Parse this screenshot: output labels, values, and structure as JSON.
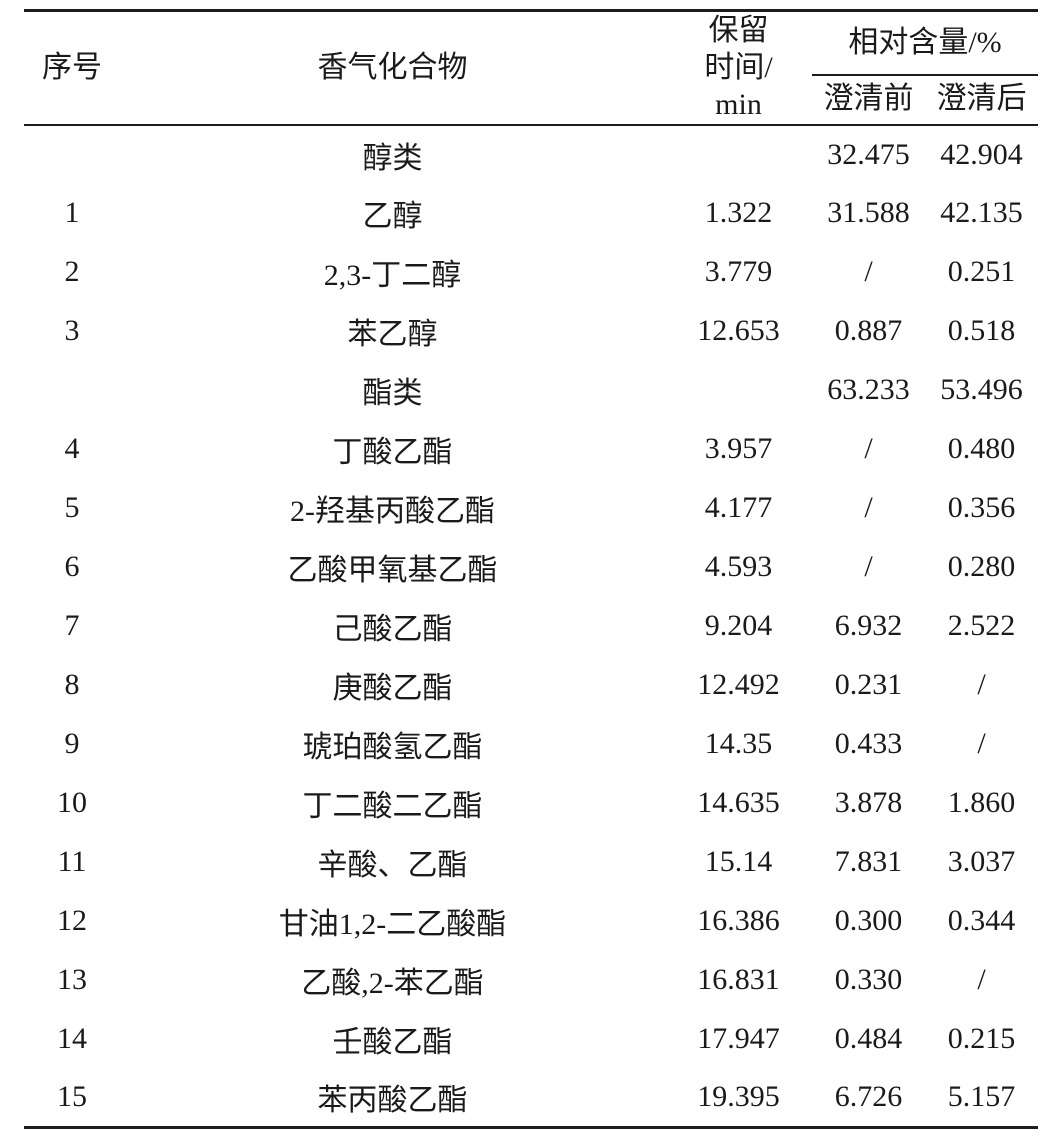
{
  "table": {
    "header": {
      "no": "序号",
      "compound": "香气化合物",
      "retention_lines": [
        "保留",
        "时间/",
        "min"
      ],
      "content_group": "相对含量/%",
      "before": "澄清前",
      "after": "澄清后"
    },
    "rows": [
      {
        "no": "",
        "compound": "醇类",
        "rt": "",
        "before": "32.475",
        "after": "42.904"
      },
      {
        "no": "1",
        "compound": "乙醇",
        "rt": "1.322",
        "before": "31.588",
        "after": "42.135"
      },
      {
        "no": "2",
        "compound": "2,3-丁二醇",
        "rt": "3.779",
        "before": "/",
        "after": "0.251"
      },
      {
        "no": "3",
        "compound": "苯乙醇",
        "rt": "12.653",
        "before": "0.887",
        "after": "0.518"
      },
      {
        "no": "",
        "compound": "酯类",
        "rt": "",
        "before": "63.233",
        "after": "53.496"
      },
      {
        "no": "4",
        "compound": "丁酸乙酯",
        "rt": "3.957",
        "before": "/",
        "after": "0.480"
      },
      {
        "no": "5",
        "compound": "2-羟基丙酸乙酯",
        "rt": "4.177",
        "before": "/",
        "after": "0.356"
      },
      {
        "no": "6",
        "compound": "乙酸甲氧基乙酯",
        "rt": "4.593",
        "before": "/",
        "after": "0.280"
      },
      {
        "no": "7",
        "compound": "己酸乙酯",
        "rt": "9.204",
        "before": "6.932",
        "after": "2.522"
      },
      {
        "no": "8",
        "compound": "庚酸乙酯",
        "rt": "12.492",
        "before": "0.231",
        "after": "/"
      },
      {
        "no": "9",
        "compound": "琥珀酸氢乙酯",
        "rt": "14.35",
        "before": "0.433",
        "after": "/"
      },
      {
        "no": "10",
        "compound": "丁二酸二乙酯",
        "rt": "14.635",
        "before": "3.878",
        "after": "1.860"
      },
      {
        "no": "11",
        "compound": "辛酸、乙酯",
        "rt": "15.14",
        "before": "7.831",
        "after": "3.037"
      },
      {
        "no": "12",
        "compound": "甘油1,2-二乙酸酯",
        "rt": "16.386",
        "before": "0.300",
        "after": "0.344"
      },
      {
        "no": "13",
        "compound": "乙酸,2-苯乙酯",
        "rt": "16.831",
        "before": "0.330",
        "after": "/"
      },
      {
        "no": "14",
        "compound": "壬酸乙酯",
        "rt": "17.947",
        "before": "0.484",
        "after": "0.215"
      },
      {
        "no": "15",
        "compound": "苯丙酸乙酯",
        "rt": "19.395",
        "before": "6.726",
        "after": "5.157"
      }
    ],
    "colors": {
      "text": "#1a1a1a",
      "rule": "#1c1c1c",
      "background": "#ffffff"
    }
  }
}
